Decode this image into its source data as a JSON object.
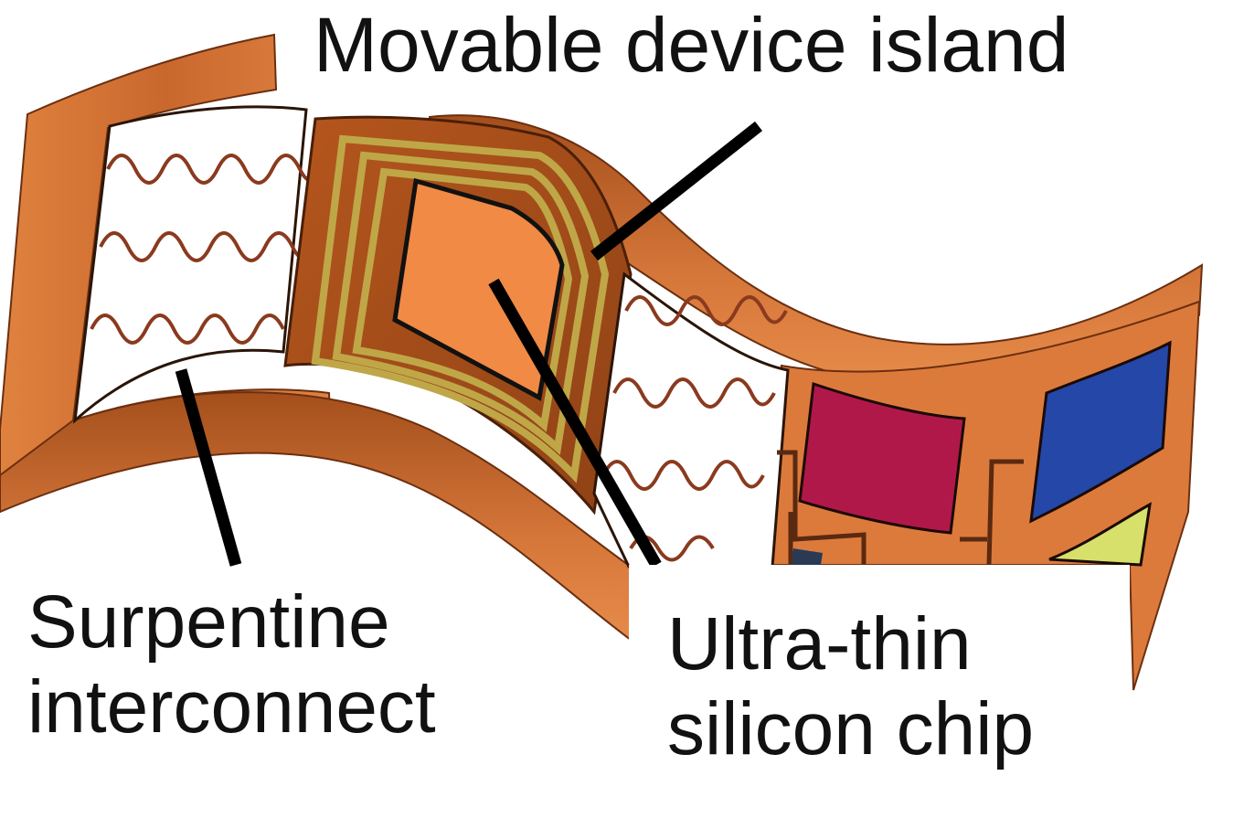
{
  "labels": {
    "movable_device_island": "Movable device island",
    "serpentine_line1": "Surpentine",
    "serpentine_line2": "interconnect",
    "chip_line1": "Ultra-thin",
    "chip_line2": "silicon chip"
  },
  "colors": {
    "substrate": "#d9793b",
    "substrate_dark": "#a8501e",
    "island_top": "#b45a22",
    "gold_traces": "#b9a23e",
    "chip": "#f08a45",
    "serpentine": "#8a3a1e",
    "magenta_chip": "#b0184a",
    "blue_chip": "#2447a8",
    "yellow_chip": "#d6e06a",
    "leader_line": "#000000"
  }
}
